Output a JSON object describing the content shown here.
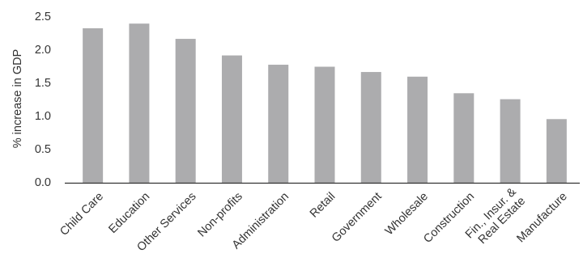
{
  "chart_data": {
    "type": "bar",
    "title": "",
    "xlabel": "",
    "ylabel": "% increase in GDP",
    "ylim": [
      0,
      2.5
    ],
    "yticks": [
      "0.0",
      "0.5",
      "1.0",
      "1.5",
      "2.0",
      "2.5"
    ],
    "grid": false,
    "legend": "none",
    "bar_color": "#acacae",
    "axis_color": "#333333",
    "categories": [
      [
        "Child Care"
      ],
      [
        "Education"
      ],
      [
        "Other Services"
      ],
      [
        "Non-profits"
      ],
      [
        "Administration"
      ],
      [
        "Retail"
      ],
      [
        "Government"
      ],
      [
        "Wholesale"
      ],
      [
        "Construction"
      ],
      [
        "Fin., Insur. &",
        "Real Estate"
      ],
      [
        "Manufacture"
      ]
    ],
    "values": [
      2.33,
      2.4,
      2.17,
      1.92,
      1.78,
      1.75,
      1.67,
      1.6,
      1.35,
      1.26,
      0.96
    ]
  }
}
